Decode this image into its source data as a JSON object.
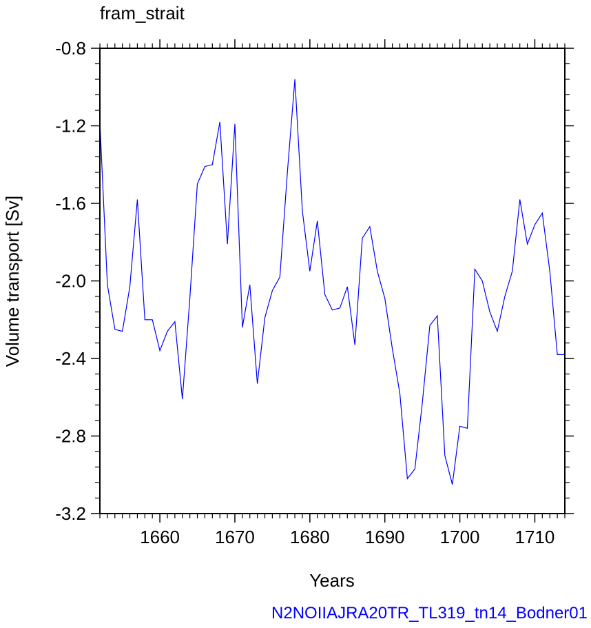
{
  "chart_data": {
    "type": "line",
    "title": "fram_strait",
    "xlabel": "Years",
    "ylabel": "Volume transport [Sv]",
    "footer": "N2NOIIAJRA20TR_TL319_tn14_Bodner01",
    "xlim": [
      1652,
      1714
    ],
    "ylim": [
      -3.2,
      -0.8
    ],
    "xticks": [
      1660,
      1670,
      1680,
      1690,
      1700,
      1710
    ],
    "xtick_labels": [
      "1660",
      "1670",
      "1680",
      "1690",
      "1700",
      "1710"
    ],
    "yticks": [
      -0.8,
      -1.2,
      -1.6,
      -2.0,
      -2.4,
      -2.8,
      -3.2
    ],
    "ytick_labels": [
      "-0.8",
      "-1.2",
      "-1.6",
      "-2.0",
      "-2.4",
      "-2.8",
      "-3.2"
    ],
    "line_color": "#0000ff",
    "x": [
      1652,
      1653,
      1654,
      1655,
      1656,
      1657,
      1658,
      1659,
      1660,
      1661,
      1662,
      1663,
      1664,
      1665,
      1666,
      1667,
      1668,
      1669,
      1670,
      1671,
      1672,
      1673,
      1674,
      1675,
      1676,
      1677,
      1678,
      1679,
      1680,
      1681,
      1682,
      1683,
      1684,
      1685,
      1686,
      1687,
      1688,
      1689,
      1690,
      1691,
      1692,
      1693,
      1694,
      1695,
      1696,
      1697,
      1698,
      1699,
      1700,
      1701,
      1702,
      1703,
      1704,
      1705,
      1706,
      1707,
      1708,
      1709,
      1710,
      1711,
      1712,
      1713,
      1714
    ],
    "y": [
      -1.18,
      -2.02,
      -2.25,
      -2.26,
      -2.03,
      -1.58,
      -2.2,
      -2.2,
      -2.36,
      -2.26,
      -2.21,
      -2.61,
      -2.09,
      -1.5,
      -1.41,
      -1.4,
      -1.18,
      -1.81,
      -1.19,
      -2.24,
      -2.02,
      -2.53,
      -2.19,
      -2.05,
      -1.98,
      -1.44,
      -0.96,
      -1.64,
      -1.95,
      -1.69,
      -2.07,
      -2.15,
      -2.14,
      -2.03,
      -2.33,
      -1.78,
      -1.72,
      -1.95,
      -2.09,
      -2.35,
      -2.58,
      -3.02,
      -2.97,
      -2.63,
      -2.23,
      -2.18,
      -2.9,
      -3.05,
      -2.75,
      -2.76,
      -1.94,
      -2.0,
      -2.16,
      -2.26,
      -2.08,
      -1.95,
      -1.58,
      -1.81,
      -1.71,
      -1.65,
      -1.95,
      -2.38,
      -2.38
    ]
  }
}
